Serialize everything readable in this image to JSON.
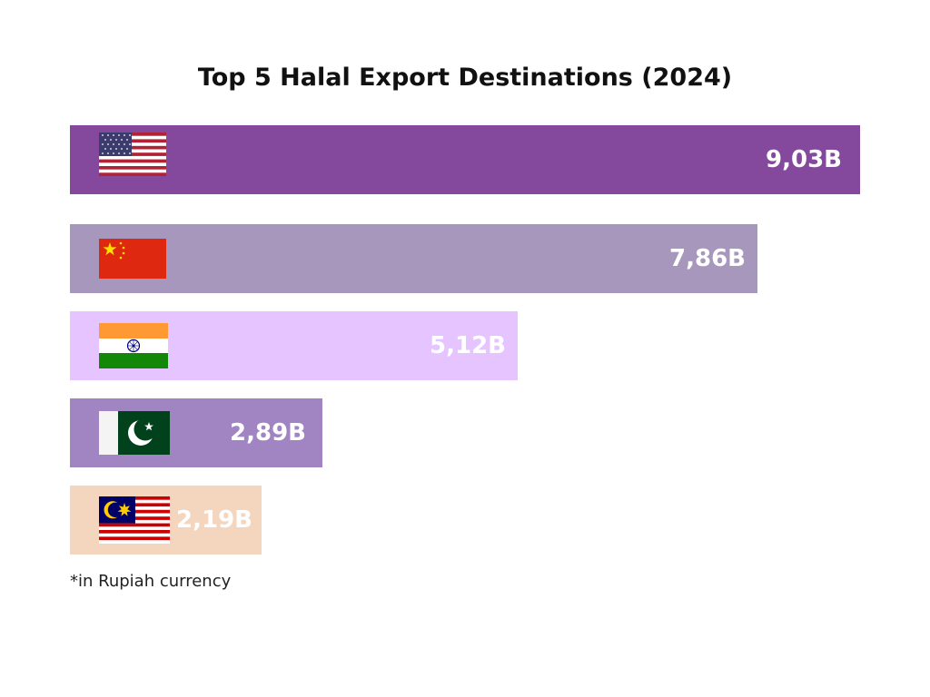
{
  "chart_data": {
    "type": "bar",
    "orientation": "horizontal",
    "title": "Top 5 Halal Export Destinations (2024)",
    "categories": [
      "United States",
      "China",
      "India",
      "Pakistan",
      "Malaysia"
    ],
    "values": [
      9.03,
      7.86,
      5.12,
      2.89,
      2.19
    ],
    "value_labels": [
      "9,03B",
      "7,86B",
      "5,12B",
      "2,89B",
      "2,19B"
    ],
    "bar_colors": [
      "#84489C",
      "#A897BD",
      "#E6C4FF",
      "#A184C2",
      "#F4D5BE"
    ],
    "flag_icons": [
      "usa-flag-icon",
      "china-flag-icon",
      "india-flag-icon",
      "pakistan-flag-icon",
      "malaysia-flag-icon"
    ],
    "xlim": [
      0,
      9.03
    ],
    "footnote": "*in Rupiah currency"
  }
}
